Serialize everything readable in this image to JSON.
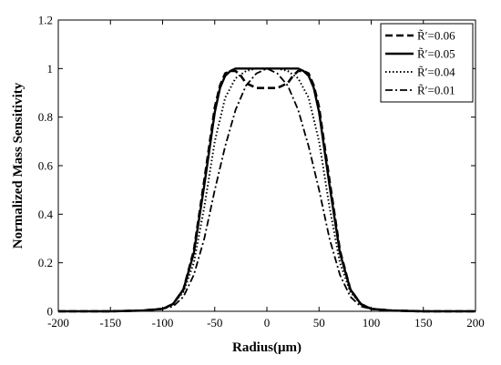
{
  "chart_data": {
    "type": "line",
    "title": "",
    "xlabel": "Radius(μm)",
    "ylabel": "Normalized Mass Sensitivity",
    "xlim": [
      -200,
      200
    ],
    "ylim": [
      0,
      1.2
    ],
    "xticks": [
      "-200",
      "-150",
      "-100",
      "-50",
      "0",
      "50",
      "100",
      "150",
      "200"
    ],
    "yticks": [
      "0",
      "0.2",
      "0.4",
      "0.6",
      "0.8",
      "1",
      "1.2"
    ],
    "grid": false,
    "legend_position": "top-right",
    "series": [
      {
        "name": "R̃′=0.06",
        "dash": "dashed",
        "x": [
          -200,
          -150,
          -120,
          -100,
          -90,
          -80,
          -70,
          -60,
          -50,
          -45,
          -40,
          -35,
          -30,
          -25,
          -20,
          -10,
          0,
          10,
          20,
          25,
          30,
          35,
          40,
          45,
          50,
          60,
          70,
          80,
          90,
          100,
          120,
          150,
          200
        ],
        "y": [
          0,
          0,
          0.003,
          0.01,
          0.03,
          0.09,
          0.25,
          0.54,
          0.84,
          0.93,
          0.98,
          0.99,
          0.99,
          0.97,
          0.94,
          0.92,
          0.92,
          0.92,
          0.94,
          0.97,
          0.99,
          0.99,
          0.98,
          0.93,
          0.84,
          0.54,
          0.25,
          0.09,
          0.03,
          0.01,
          0.003,
          0,
          0
        ]
      },
      {
        "name": "R̃′=0.05",
        "dash": "solid",
        "x": [
          -200,
          -150,
          -120,
          -100,
          -90,
          -80,
          -70,
          -60,
          -50,
          -45,
          -40,
          -35,
          -30,
          -20,
          -10,
          0,
          10,
          20,
          30,
          35,
          40,
          45,
          50,
          60,
          70,
          80,
          90,
          100,
          120,
          150,
          200
        ],
        "y": [
          0,
          0,
          0.003,
          0.01,
          0.03,
          0.09,
          0.24,
          0.52,
          0.82,
          0.92,
          0.97,
          0.99,
          1.0,
          1.0,
          1.0,
          1.0,
          1.0,
          1.0,
          1.0,
          0.99,
          0.97,
          0.92,
          0.82,
          0.52,
          0.24,
          0.09,
          0.03,
          0.01,
          0.003,
          0,
          0
        ]
      },
      {
        "name": "R̃′=0.04",
        "dash": "dotted",
        "x": [
          -200,
          -150,
          -120,
          -100,
          -90,
          -80,
          -70,
          -60,
          -50,
          -40,
          -30,
          -20,
          -10,
          0,
          10,
          20,
          30,
          40,
          50,
          60,
          70,
          80,
          90,
          100,
          120,
          150,
          200
        ],
        "y": [
          0,
          0,
          0.003,
          0.01,
          0.03,
          0.08,
          0.2,
          0.43,
          0.7,
          0.88,
          0.96,
          0.99,
          1.0,
          1.0,
          1.0,
          0.99,
          0.96,
          0.88,
          0.7,
          0.43,
          0.2,
          0.08,
          0.03,
          0.01,
          0.003,
          0,
          0
        ]
      },
      {
        "name": "R̃′=0.01",
        "dash": "dashdot",
        "x": [
          -200,
          -150,
          -120,
          -100,
          -90,
          -80,
          -70,
          -60,
          -50,
          -40,
          -30,
          -20,
          -10,
          0,
          10,
          20,
          30,
          40,
          50,
          60,
          70,
          80,
          90,
          100,
          120,
          150,
          200
        ],
        "y": [
          0,
          0,
          0.002,
          0.01,
          0.02,
          0.06,
          0.15,
          0.3,
          0.5,
          0.68,
          0.83,
          0.93,
          0.98,
          1.0,
          0.98,
          0.93,
          0.83,
          0.68,
          0.5,
          0.3,
          0.15,
          0.06,
          0.02,
          0.01,
          0.002,
          0,
          0
        ]
      }
    ]
  }
}
